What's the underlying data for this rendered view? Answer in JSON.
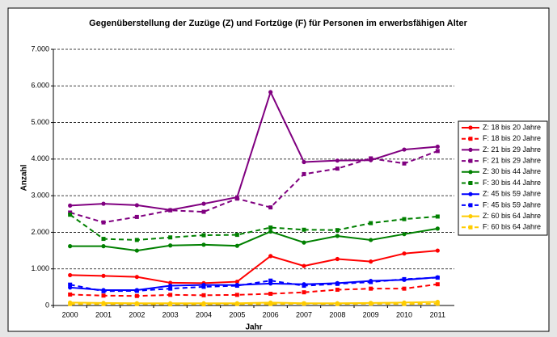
{
  "chart_data": {
    "type": "line",
    "title": "Gegenüberstellung der Zuzüge (Z) und Fortzüge (F) für Personen im erwerbsfähigen Alter",
    "x_label": "Jahr",
    "y_label": "Anzahl",
    "categories": [
      "2000",
      "2001",
      "2002",
      "2003",
      "2004",
      "2005",
      "2006",
      "2007",
      "2008",
      "2009",
      "2010",
      "2011"
    ],
    "ylim": [
      0,
      7000
    ],
    "yticks": [
      0,
      {
        "value": 1000,
        "label": "1.000"
      },
      {
        "value": 2000,
        "label": "2.000"
      },
      {
        "value": 3000,
        "label": "3.000"
      },
      {
        "value": 4000,
        "label": "4.000"
      },
      {
        "value": 5000,
        "label": "5.000"
      },
      {
        "value": 6000,
        "label": "6.000"
      },
      {
        "value": 7000,
        "label": "7.000"
      }
    ],
    "grid": true,
    "legend": "right",
    "series": [
      {
        "name": "Z: 18 bis 20 Jahre",
        "color": "#ff0000",
        "dashed": false,
        "marker": "circle",
        "values": [
          830,
          810,
          780,
          620,
          610,
          650,
          1350,
          1080,
          1270,
          1200,
          1420,
          1500
        ]
      },
      {
        "name": "F: 18 bis 20 Jahre",
        "color": "#ff0000",
        "dashed": true,
        "marker": "square",
        "values": [
          300,
          270,
          260,
          290,
          280,
          290,
          320,
          360,
          430,
          460,
          460,
          580
        ]
      },
      {
        "name": "Z: 21 bis 29 Jahre",
        "color": "#800080",
        "dashed": false,
        "marker": "circle",
        "values": [
          2730,
          2780,
          2740,
          2610,
          2780,
          2960,
          5830,
          3920,
          3960,
          3970,
          4260,
          4340
        ]
      },
      {
        "name": "F: 21 bis 29 Jahre",
        "color": "#800080",
        "dashed": true,
        "marker": "square",
        "values": [
          2540,
          2270,
          2420,
          2600,
          2560,
          2920,
          2680,
          3590,
          3740,
          4020,
          3880,
          4220
        ]
      },
      {
        "name": "Z: 30 bis 44 Jahre",
        "color": "#008000",
        "dashed": false,
        "marker": "circle",
        "values": [
          1620,
          1620,
          1500,
          1640,
          1660,
          1630,
          2020,
          1720,
          1900,
          1790,
          1950,
          2100
        ]
      },
      {
        "name": "F: 30 bis 44 Jahre",
        "color": "#008000",
        "dashed": true,
        "marker": "square",
        "values": [
          2480,
          1820,
          1790,
          1860,
          1920,
          1930,
          2130,
          2070,
          2060,
          2250,
          2360,
          2430
        ]
      },
      {
        "name": "Z: 45 bis 59 Jahre",
        "color": "#0000ff",
        "dashed": false,
        "marker": "circle",
        "values": [
          490,
          420,
          420,
          540,
          560,
          560,
          600,
          580,
          610,
          670,
          700,
          770
        ]
      },
      {
        "name": "F: 45 bis 59 Jahre",
        "color": "#0000ff",
        "dashed": true,
        "marker": "square",
        "values": [
          570,
          390,
          400,
          460,
          510,
          540,
          680,
          540,
          590,
          640,
          720,
          760
        ]
      },
      {
        "name": "Z: 60 bis 64 Jahre",
        "color": "#ffcc00",
        "dashed": false,
        "marker": "circle",
        "values": [
          80,
          70,
          60,
          60,
          60,
          60,
          80,
          60,
          60,
          70,
          80,
          100
        ]
      },
      {
        "name": "F: 60 bis 64 Jahre",
        "color": "#ffcc00",
        "dashed": true,
        "marker": "square",
        "values": [
          40,
          40,
          40,
          30,
          30,
          40,
          40,
          50,
          40,
          50,
          40,
          50
        ]
      }
    ]
  }
}
